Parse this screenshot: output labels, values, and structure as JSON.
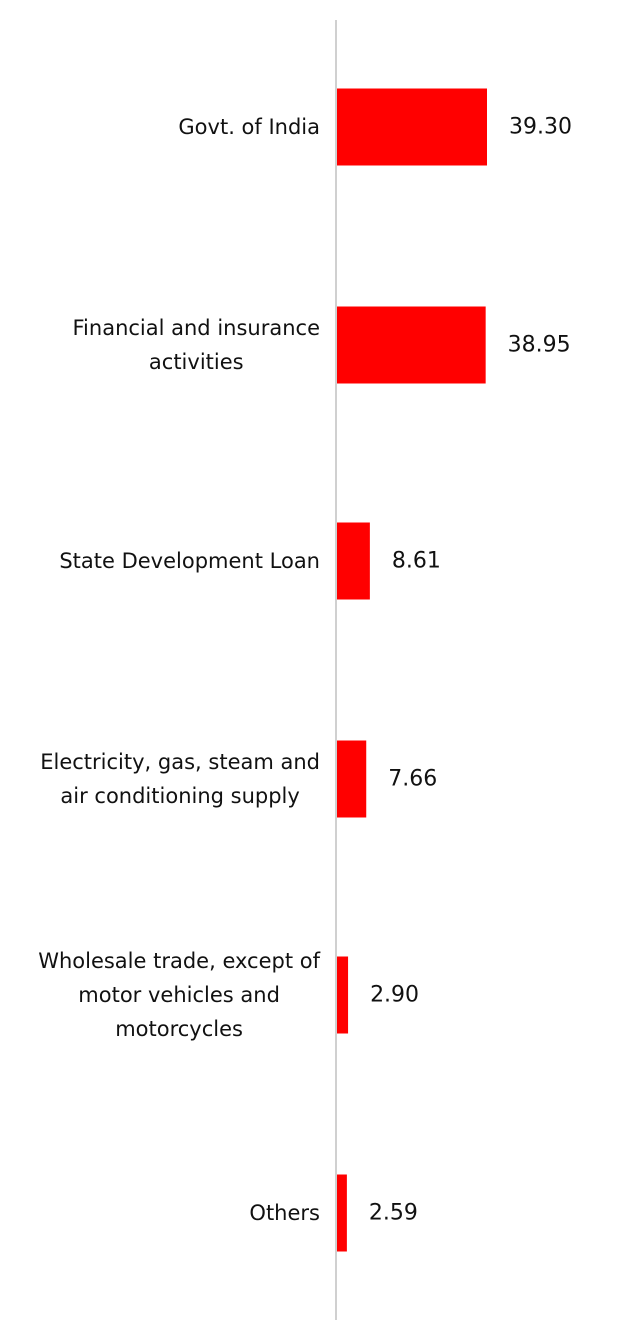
{
  "chart_data": {
    "type": "bar",
    "orientation": "horizontal",
    "categories": [
      "Govt. of India",
      "Financial and insurance activities",
      "State Development Loan",
      "Electricity, gas, steam and air conditioning supply",
      "Wholesale trade, except of motor vehicles and motorcycles",
      "Others"
    ],
    "category_lines": [
      [
        "Govt. of India"
      ],
      [
        "Financial and insurance",
        "activities"
      ],
      [
        "State Development Loan"
      ],
      [
        "Electricity, gas, steam and",
        "air conditioning supply"
      ],
      [
        "Wholesale trade, except of",
        "motor vehicles and",
        "motorcycles"
      ],
      [
        "Others"
      ]
    ],
    "values": [
      39.3,
      38.95,
      8.61,
      7.66,
      2.9,
      2.59
    ],
    "value_labels": [
      "39.30",
      "38.95",
      "8.61",
      "7.66",
      "2.90",
      "2.59"
    ],
    "xlim": [
      0,
      42
    ],
    "grid": false,
    "legend": "none",
    "bar_color": "#ff0000",
    "axis_color": "#d0d0d0"
  }
}
